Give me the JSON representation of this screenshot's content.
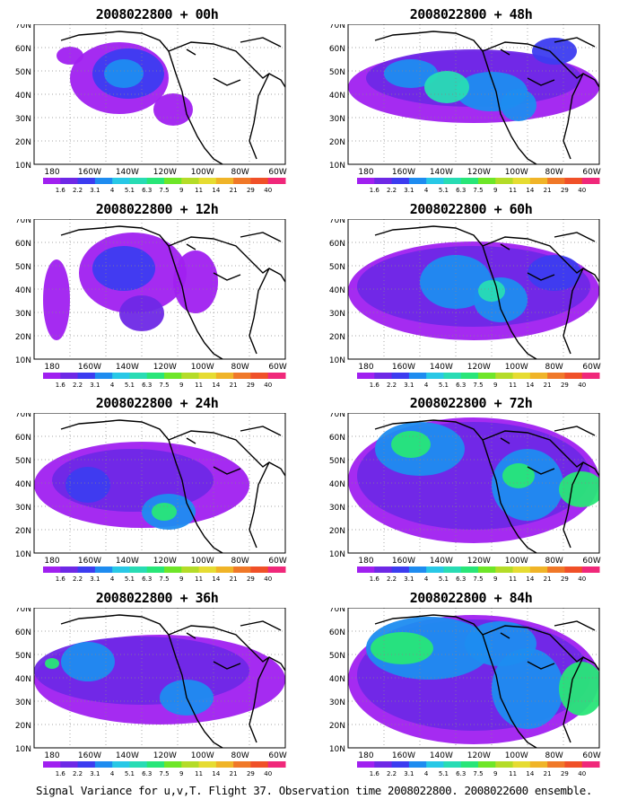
{
  "panels": [
    {
      "title": "2008022800 + 00h"
    },
    {
      "title": "2008022800 + 48h"
    },
    {
      "title": "2008022800 + 12h"
    },
    {
      "title": "2008022800 + 60h"
    },
    {
      "title": "2008022800 + 24h"
    },
    {
      "title": "2008022800 + 72h"
    },
    {
      "title": "2008022800 + 36h"
    },
    {
      "title": "2008022800 + 84h"
    }
  ],
  "map": {
    "lat_labels": [
      "70N",
      "60N",
      "50N",
      "40N",
      "30N",
      "20N",
      "10N"
    ],
    "lon_labels": [
      "180",
      "160W",
      "140W",
      "120W",
      "100W",
      "80W",
      "60W"
    ]
  },
  "colorbar": {
    "labels": [
      "1.6",
      "2.2",
      "3.1",
      "4",
      "5.1",
      "6.3",
      "7.5",
      "9",
      "11",
      "14",
      "21",
      "29",
      "40"
    ],
    "colors": [
      "#a020f0",
      "#6e28e6",
      "#3c3cf0",
      "#1e8cf0",
      "#28c8e6",
      "#28dcb4",
      "#28e678",
      "#6ee628",
      "#b4dc28",
      "#e6dc32",
      "#f0b428",
      "#f07828",
      "#f05028",
      "#f0287a"
    ]
  },
  "footer": "Signal Variance for u,v,T. Flight 37. Observation time 2008022800. 2008022600 ensemble."
}
